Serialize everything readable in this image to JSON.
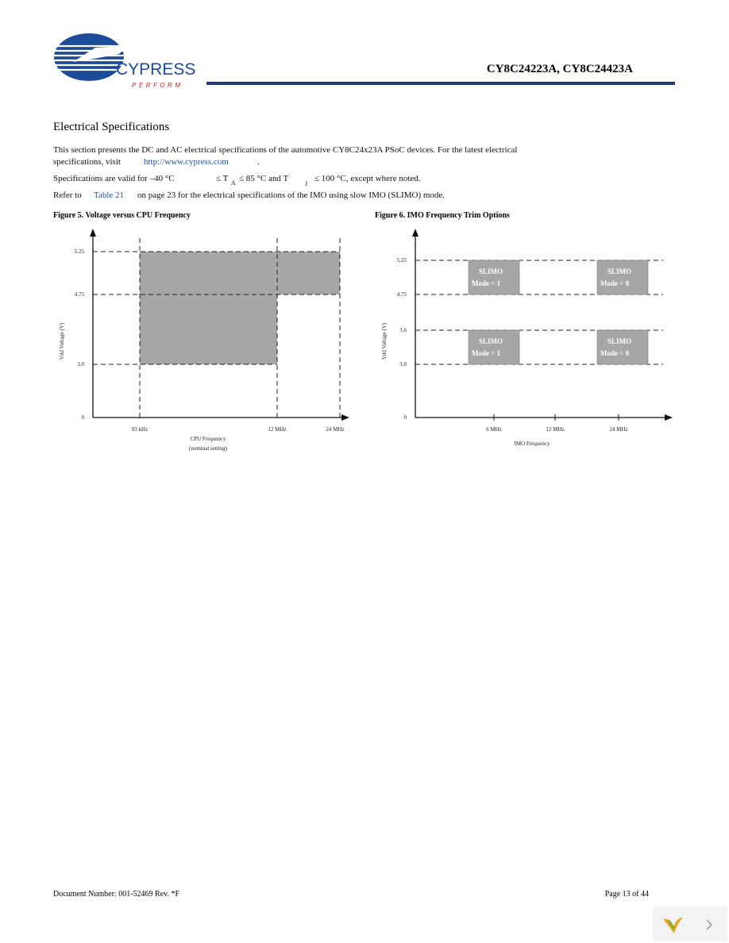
{
  "header": {
    "logo_name": "CYPRESS",
    "logo_tagline": "PERFORM",
    "title": "CY8C24223A, CY8C24423A"
  },
  "section": {
    "title": "Electrical Specifications",
    "intro_line1": "This section presents the DC and AC electrical specifications of the automotive CY8C24x23A PSoC devices. For the latest electrical",
    "intro_line2": "specifications, visit",
    "intro_link": "http://www.cypress.com",
    "intro_end": ".",
    "validity": {
      "start": "Specifications are valid for –40 °C",
      "ta": "≤ T",
      "ta_sub": "A",
      "mid": "≤ 85 °C and T",
      "tj_sub": "J",
      "end": "≤ 100 °C, except where noted."
    },
    "refer": {
      "start": "Refer to",
      "link": "Table 21",
      "end": "on page 23 for the electrical specifications of the IMO using slow IMO (SLIMO) mode."
    }
  },
  "figures": [
    {
      "caption": "Figure 5.  Voltage versus CPU Frequency",
      "y_label": "Vdd Voltage (V)",
      "x_label": "CPU Frequency",
      "x_label_note": "(nominal setting)",
      "yticks": [
        "5.25",
        "4.75",
        "3.0",
        "0"
      ],
      "xticks": [
        "93 kHz",
        "12 MHz",
        "24 MHz"
      ]
    },
    {
      "caption": "Figure 6.  IMO Frequency Trim Options",
      "y_label": "Vdd Voltage (V)",
      "x_label": "IMO Frequency",
      "yticks": [
        "5.25",
        "4.75",
        "3.6",
        "3.0",
        "0"
      ],
      "xticks": [
        "6 MHz",
        "12 MHz",
        "24 MHz"
      ],
      "regions": [
        {
          "label": "SLIMO",
          "mode": "Mode = 1"
        },
        {
          "label": "SLIMO",
          "mode": "Mode = 0"
        },
        {
          "label": "SLIMO",
          "mode": "Mode = 1"
        },
        {
          "label": "SLIMO",
          "mode": "Mode = 0"
        }
      ]
    }
  ],
  "footer": {
    "document": "Document Number: 001-52469  Rev. *F",
    "page": "Page 13 of 44"
  }
}
